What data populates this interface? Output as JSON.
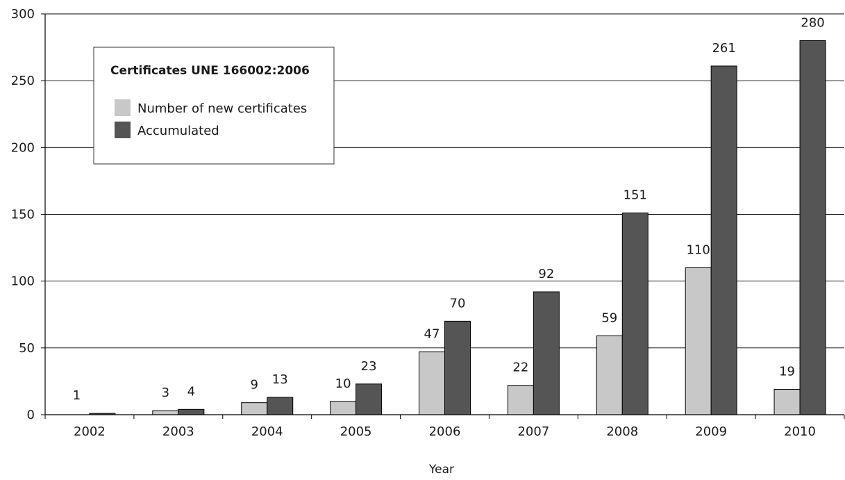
{
  "chart_data": {
    "type": "bar",
    "title": "",
    "xlabel": "Year",
    "ylabel": "",
    "categories": [
      "2002",
      "2003",
      "2004",
      "2005",
      "2006",
      "2007",
      "2008",
      "2009",
      "2010"
    ],
    "series": [
      {
        "name": "Number of new certificates",
        "color": "#c8c8c8",
        "values": [
          null,
          3,
          9,
          10,
          47,
          22,
          59,
          110,
          19
        ]
      },
      {
        "name": "Accumulated",
        "color": "#555555",
        "values": [
          1,
          4,
          13,
          23,
          70,
          92,
          151,
          261,
          280
        ]
      }
    ],
    "ylim": [
      0,
      300
    ],
    "yticks": [
      0,
      50,
      100,
      150,
      200,
      250,
      300
    ],
    "grid": "horizontal",
    "legend": {
      "title": "Certificates UNE 166002:2006",
      "placement": "top-left"
    }
  }
}
